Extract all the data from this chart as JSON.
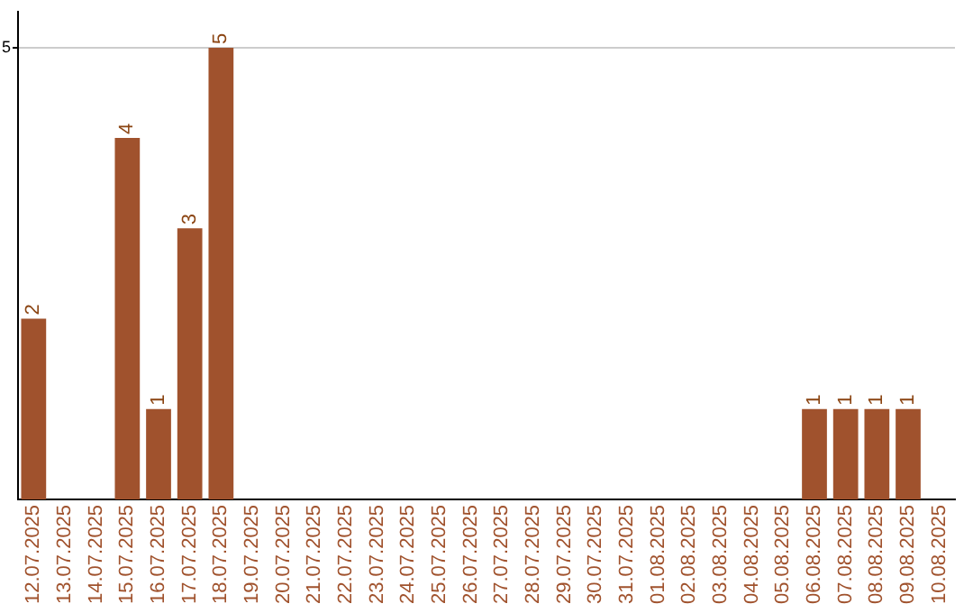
{
  "chart_data": {
    "type": "bar",
    "categories": [
      "12.07.2025",
      "13.07.2025",
      "14.07.2025",
      "15.07.2025",
      "16.07.2025",
      "17.07.2025",
      "18.07.2025",
      "19.07.2025",
      "20.07.2025",
      "21.07.2025",
      "22.07.2025",
      "23.07.2025",
      "24.07.2025",
      "25.07.2025",
      "26.07.2025",
      "27.07.2025",
      "28.07.2025",
      "29.07.2025",
      "30.07.2025",
      "31.07.2025",
      "01.08.2025",
      "02.08.2025",
      "03.08.2025",
      "04.08.2025",
      "05.08.2025",
      "06.08.2025",
      "07.08.2025",
      "08.08.2025",
      "09.08.2025",
      "10.08.2025"
    ],
    "values": [
      2,
      0,
      0,
      4,
      1,
      3,
      5,
      0,
      0,
      0,
      0,
      0,
      0,
      0,
      0,
      0,
      0,
      0,
      0,
      0,
      0,
      0,
      0,
      0,
      0,
      1,
      1,
      1,
      1,
      0
    ],
    "value_labels": [
      "2",
      null,
      null,
      "4",
      "1",
      "3",
      "5",
      null,
      null,
      null,
      null,
      null,
      null,
      null,
      null,
      null,
      null,
      null,
      null,
      null,
      null,
      null,
      null,
      null,
      null,
      "1",
      "1",
      "1",
      "1",
      null
    ],
    "color": "#a0522d",
    "ylim": [
      0,
      5.4
    ],
    "yticks": [
      5
    ],
    "grid": "y",
    "legend": false
  }
}
